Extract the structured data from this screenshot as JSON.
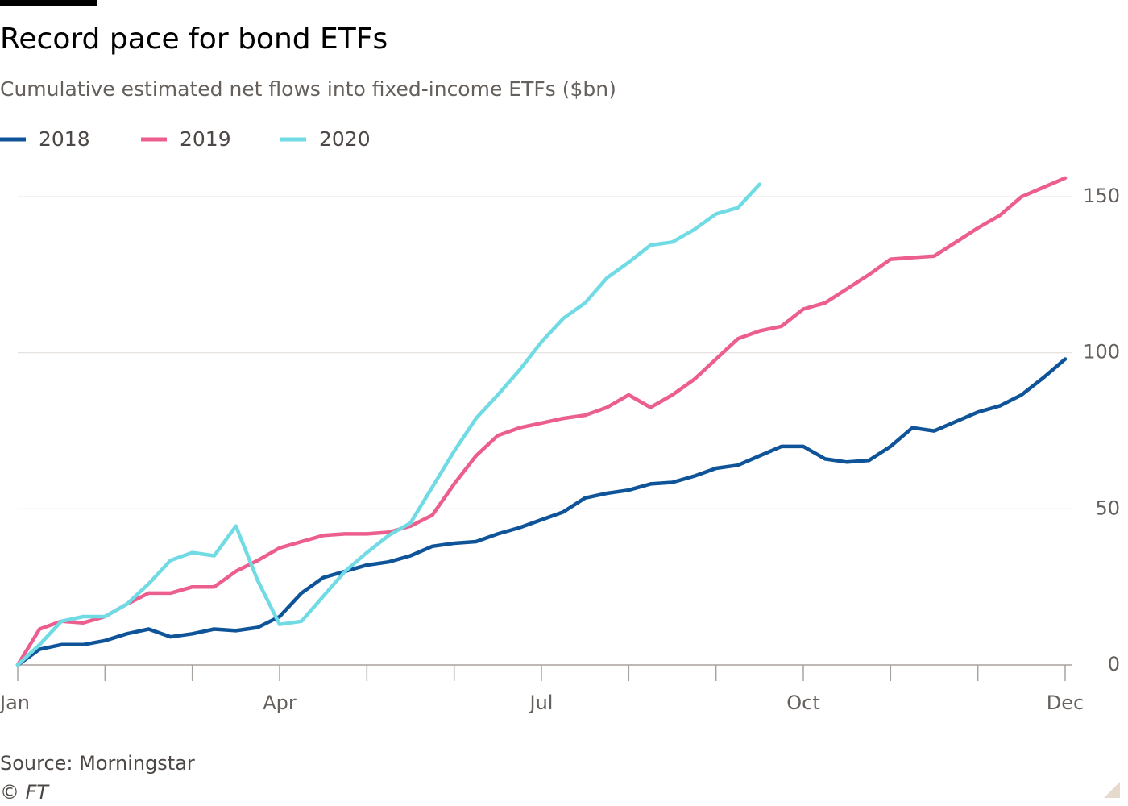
{
  "chart_data": {
    "type": "line",
    "title": "Record pace for bond ETFs",
    "subtitle": "Cumulative estimated net flows into fixed-income ETFs ($bn)",
    "source": "Source: Morningstar",
    "copyright": "© FT",
    "categories": [
      "Jan",
      null,
      null,
      null,
      null,
      null,
      null,
      null,
      null,
      null,
      null,
      null,
      "Apr",
      null,
      null,
      null,
      null,
      null,
      null,
      null,
      null,
      null,
      null,
      null,
      "Jul",
      null,
      null,
      null,
      null,
      null,
      null,
      null,
      null,
      null,
      null,
      null,
      "Oct",
      null,
      null,
      null,
      null,
      null,
      null,
      null,
      null,
      null,
      null,
      null,
      "Dec"
    ],
    "series": [
      {
        "name": "2018",
        "color": "#0f5499",
        "values": [
          0,
          5,
          6.5,
          6.5,
          7.8,
          10,
          11.5,
          9,
          10,
          11.5,
          11,
          12,
          15.5,
          23,
          28,
          30,
          32,
          33,
          35,
          38,
          39,
          39.5,
          42,
          44,
          46.5,
          49,
          53.5,
          55,
          56,
          58,
          58.5,
          60.5,
          63,
          64,
          67,
          70,
          70,
          66,
          65,
          65.5,
          70,
          76,
          75,
          78,
          81,
          83,
          86.5,
          92,
          98
        ]
      },
      {
        "name": "2019",
        "color": "#eb5e8d",
        "values": [
          0,
          11.5,
          14,
          13.5,
          15.5,
          19.5,
          23,
          23,
          25,
          25,
          30,
          33.5,
          37.5,
          39.5,
          41.5,
          42,
          42,
          42.5,
          44.5,
          48,
          58,
          67,
          73.5,
          76,
          77.5,
          79,
          80,
          82.5,
          86.5,
          82.5,
          86.5,
          91.5,
          98,
          104.5,
          107,
          108.5,
          114,
          116,
          120.5,
          125,
          130,
          130.5,
          131,
          135.5,
          140,
          144,
          150,
          153,
          156
        ]
      },
      {
        "name": "2020",
        "color": "#70dbe4",
        "values": [
          0,
          6.5,
          14,
          15.5,
          15.5,
          19.5,
          26,
          33.5,
          36,
          35,
          44.5,
          27,
          13,
          14,
          22,
          30,
          36,
          41.5,
          45.5,
          57,
          68.5,
          79,
          86.5,
          94.5,
          103.5,
          111,
          116,
          124,
          129,
          134.5,
          135.5,
          139.5,
          144.5,
          146.5,
          154,
          null,
          null,
          null,
          null,
          null,
          null,
          null,
          null,
          null,
          null,
          null,
          null,
          null,
          null
        ]
      }
    ],
    "ylim": [
      0,
      157
    ],
    "yticks": [
      0,
      50,
      100,
      150
    ],
    "grid": true
  }
}
